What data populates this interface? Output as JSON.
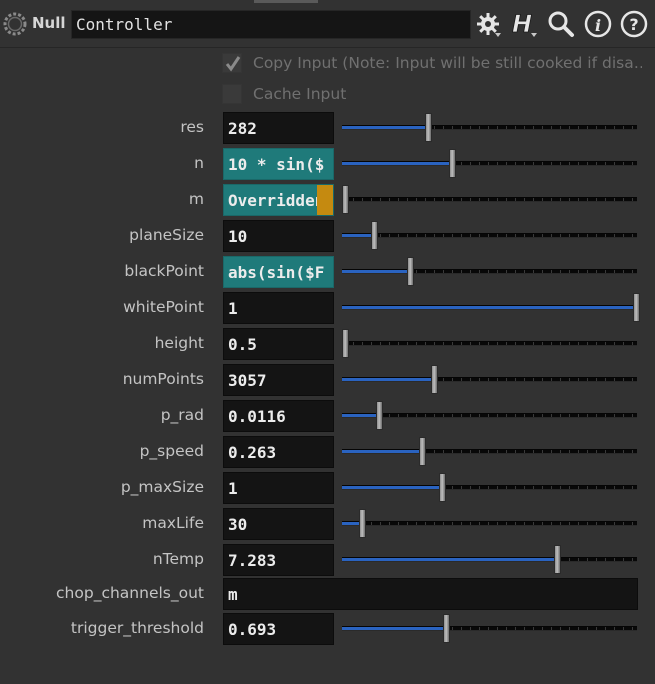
{
  "header": {
    "node_type": "Null",
    "node_name": "Controller"
  },
  "toggles": [
    {
      "label": "Copy Input (Note: Input will be still cooked if disa…",
      "checked": true,
      "enabled": false
    },
    {
      "label": "Cache Input",
      "checked": false,
      "enabled": false
    }
  ],
  "params": [
    {
      "key": "res",
      "label": "res",
      "value": "282",
      "mode": "value",
      "slider": 0.284
    },
    {
      "key": "n",
      "label": "n",
      "value": "10 * sin($",
      "mode": "expression",
      "slider": 0.369
    },
    {
      "key": "m",
      "label": "m",
      "value": "Overridden",
      "mode": "override",
      "slider": 0.0
    },
    {
      "key": "planesize",
      "label": "planeSize",
      "value": "10",
      "mode": "value",
      "slider": 0.099
    },
    {
      "key": "blackpoint",
      "label": "blackPoint",
      "value": "abs(sin($F",
      "mode": "expression",
      "slider": 0.225
    },
    {
      "key": "whitepoint",
      "label": "whitePoint",
      "value": "1",
      "mode": "value",
      "slider": 1.0
    },
    {
      "key": "height",
      "label": "height",
      "value": "0.5",
      "mode": "value",
      "slider": 0.0
    },
    {
      "key": "numpoints",
      "label": "numPoints",
      "value": "3057",
      "mode": "value",
      "slider": 0.306
    },
    {
      "key": "p-rad",
      "label": "p_rad",
      "value": "0.0116",
      "mode": "value",
      "slider": 0.116
    },
    {
      "key": "p-speed",
      "label": "p_speed",
      "value": "0.263",
      "mode": "value",
      "slider": 0.263
    },
    {
      "key": "p-maxsize",
      "label": "p_maxSize",
      "value": "1",
      "mode": "value",
      "slider": 0.333
    },
    {
      "key": "maxlife",
      "label": "maxLife",
      "value": "30",
      "mode": "value",
      "slider": 0.06
    },
    {
      "key": "ntemp",
      "label": "nTemp",
      "value": "7.283",
      "mode": "value",
      "slider": 0.728
    },
    {
      "key": "chop-channels-out",
      "label": "chop_channels_out",
      "value": "m",
      "mode": "string"
    },
    {
      "key": "trigger-threshold",
      "label": "trigger_threshold",
      "value": "0.693",
      "mode": "value",
      "slider": 0.347
    }
  ],
  "icons": {
    "node": "null-node-icon",
    "toolbar": [
      "gear-icon",
      "hscript-language-icon",
      "search-icon",
      "info-icon",
      "help-icon"
    ]
  },
  "colors": {
    "background": "#323232",
    "field": "#141414",
    "expression": "#1f7a7a",
    "override_tag": "#c58a10",
    "slider_fill": "#2a63c0"
  }
}
